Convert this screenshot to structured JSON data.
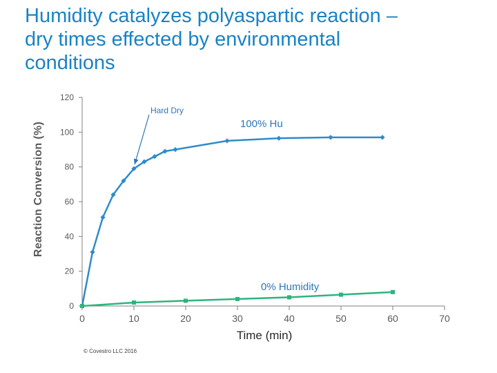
{
  "title": "Humidity catalyzes polyaspartic reaction – dry times effected by environmental conditions",
  "copyright": "© Covestro LLC 2016",
  "colors": {
    "title": "#1a82c4",
    "series_humid": "#2e8bc9",
    "series_dry": "#2bb57e",
    "axis": "#7f7f7f"
  },
  "chart_data": {
    "type": "line",
    "xlabel": "Time (min)",
    "ylabel": "Reaction Conversion (%)",
    "xlim": [
      0,
      70
    ],
    "ylim": [
      0,
      120
    ],
    "x_ticks": [
      0,
      10,
      20,
      30,
      40,
      50,
      60,
      70
    ],
    "y_ticks": [
      0,
      20,
      40,
      60,
      80,
      100,
      120
    ],
    "grid": false,
    "series": [
      {
        "name": "100% Hu",
        "color": "#2e8bc9",
        "marker": "diamond",
        "x": [
          0,
          2,
          4,
          6,
          8,
          10,
          12,
          14,
          16,
          18,
          28,
          38,
          48,
          58
        ],
        "y": [
          0,
          31,
          51,
          64,
          72,
          79,
          83,
          86,
          89,
          90,
          95,
          96.5,
          97,
          97
        ]
      },
      {
        "name": "0% Humidity",
        "color": "#2bb57e",
        "marker": "square",
        "x": [
          0,
          10,
          20,
          30,
          40,
          50,
          60
        ],
        "y": [
          0,
          2,
          3,
          4,
          5,
          6.5,
          8
        ]
      }
    ],
    "annotations": [
      {
        "text": "Hard Dry",
        "arrow_to": [
          10,
          79
        ]
      }
    ]
  }
}
